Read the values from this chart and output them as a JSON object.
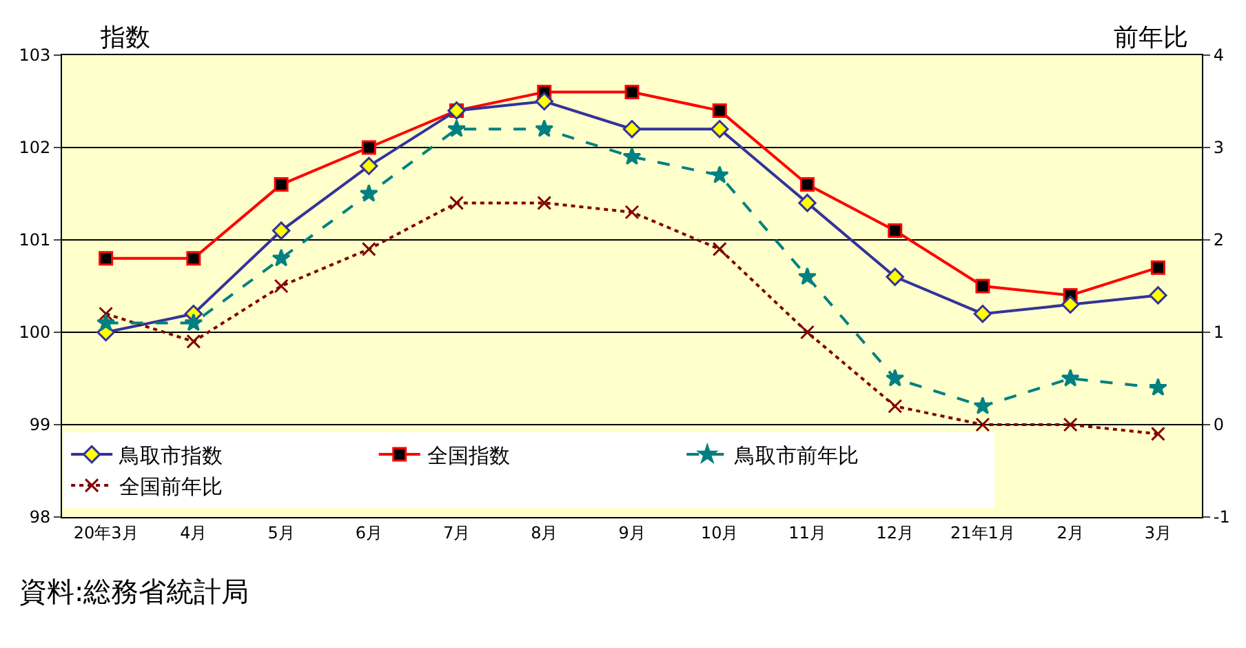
{
  "chart_data": {
    "type": "line",
    "categories": [
      "20年3月",
      "4月",
      "5月",
      "6月",
      "7月",
      "8月",
      "9月",
      "10月",
      "11月",
      "12月",
      "21年1月",
      "2月",
      "3月"
    ],
    "series": [
      {
        "name": "鳥取市指数",
        "color": "#333399",
        "marker": "diamond",
        "line_style": "solid",
        "values": [
          100.0,
          100.2,
          101.1,
          101.8,
          102.4,
          102.5,
          102.2,
          102.2,
          101.4,
          100.6,
          100.2,
          100.3,
          100.4
        ]
      },
      {
        "name": "全国指数",
        "color": "#ff0000",
        "marker": "square",
        "line_style": "solid",
        "values": [
          100.8,
          100.8,
          101.6,
          102.0,
          102.4,
          102.6,
          102.6,
          102.4,
          101.6,
          101.1,
          100.5,
          100.4,
          100.7
        ]
      },
      {
        "name": "鳥取市前年比",
        "color": "#008080",
        "marker": "star",
        "line_style": "dashed",
        "axis": "y2",
        "values": [
          1.1,
          1.1,
          1.8,
          2.5,
          3.2,
          3.2,
          2.9,
          2.7,
          1.6,
          0.5,
          0.2,
          0.5,
          0.4
        ]
      },
      {
        "name": "全国前年比",
        "color": "#800000",
        "marker": "cross",
        "line_style": "dotted",
        "axis": "y2",
        "values": [
          1.2,
          0.9,
          1.5,
          1.9,
          2.4,
          2.4,
          2.3,
          1.9,
          1.0,
          0.2,
          0.0,
          0.0,
          -0.1
        ]
      }
    ],
    "ylabel": "指数",
    "y2label": "前年比",
    "ylim": [
      98,
      103
    ],
    "yticks": [
      98,
      99,
      100,
      101,
      102,
      103
    ],
    "y2lim": [
      -1,
      4
    ],
    "y2ticks": [
      -1,
      0,
      1,
      2,
      3,
      4
    ],
    "grid": "y",
    "legend": "bottom",
    "annotations": [
      "資料:総務省統計局"
    ]
  }
}
